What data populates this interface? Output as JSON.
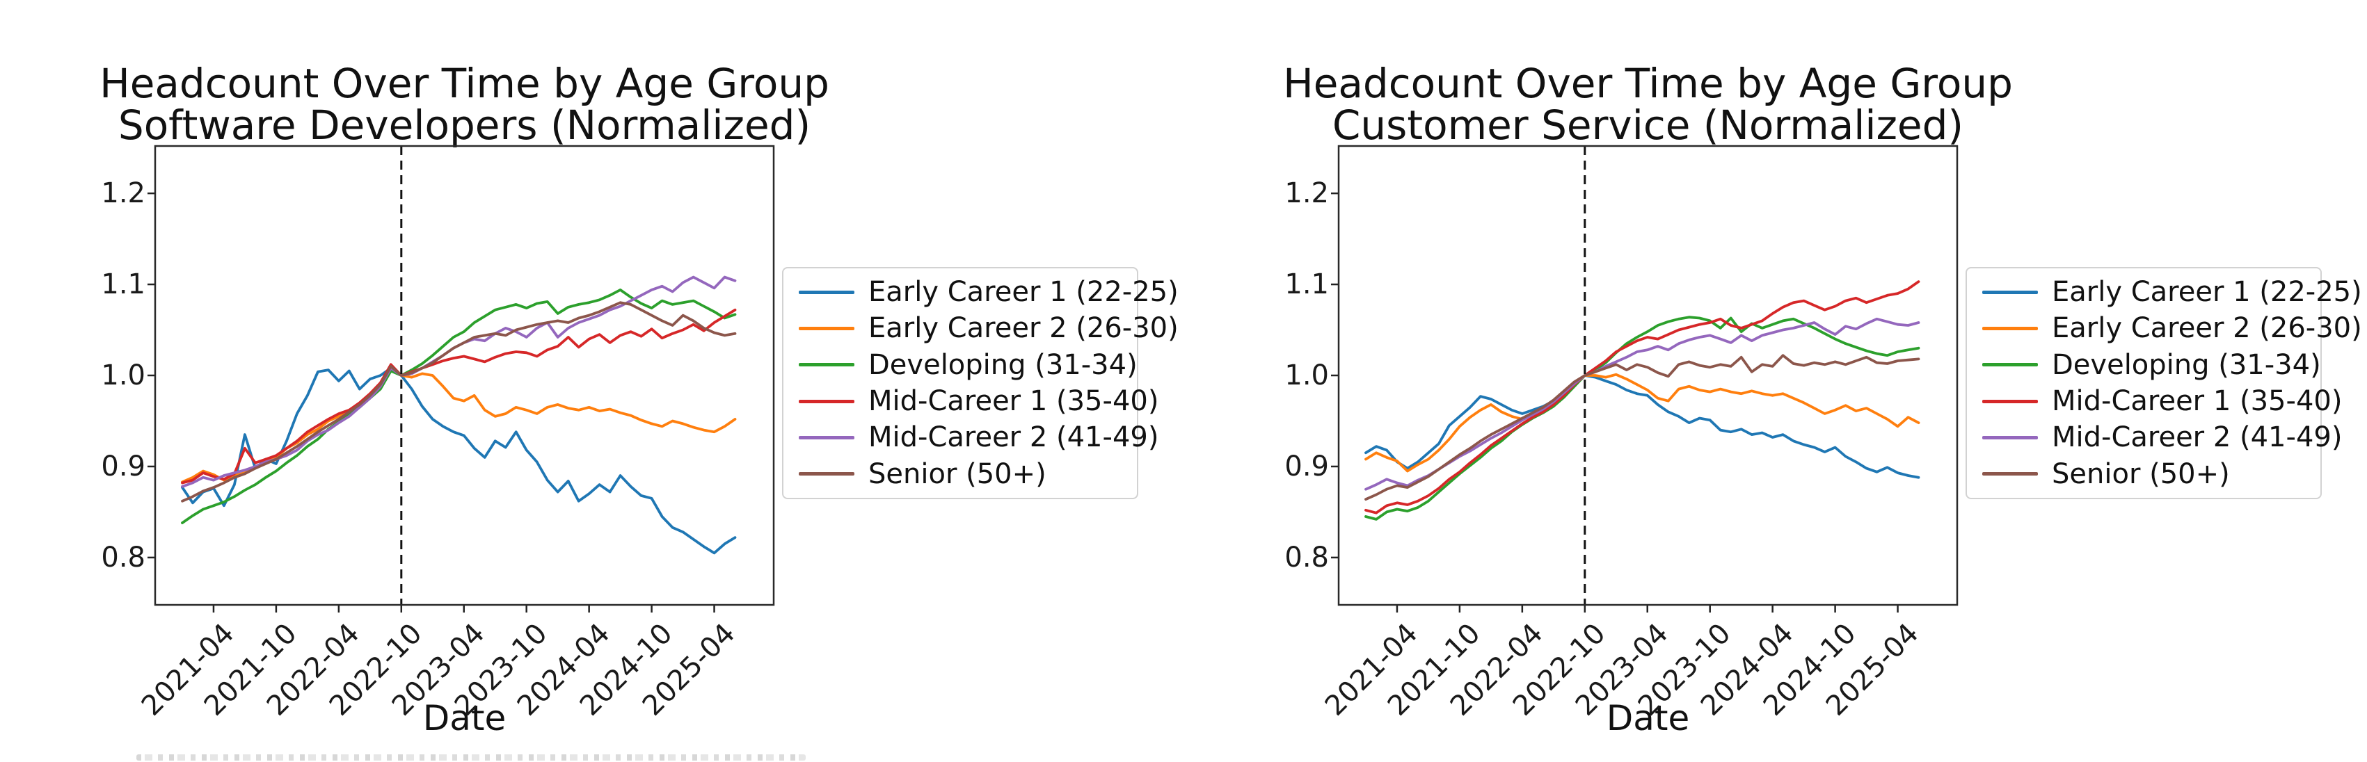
{
  "page": {
    "background": "#ffffff"
  },
  "chart_data": [
    {
      "type": "line",
      "title": "Headcount Over Time by Age Group",
      "subtitle": "Software Developers (Normalized)",
      "xlabel": "Date",
      "ylabel": "",
      "grid": false,
      "legend_position": "center-right-outside",
      "ylim": [
        0.748,
        1.252
      ],
      "y_ticks": [
        1.2,
        1.1,
        1.0,
        0.9,
        0.8
      ],
      "y_tick_labels": [
        "1.2",
        "1.1",
        "1.0",
        "0.9",
        "0.8"
      ],
      "x_unit": "month",
      "x_start": "2021-01",
      "xlim_month_index": [
        -2.6,
        56.7
      ],
      "x_tick_indices": [
        3,
        9,
        15,
        21,
        27,
        33,
        39,
        45,
        51
      ],
      "x_tick_labels": [
        "2021-04",
        "2021-10",
        "2022-04",
        "2022-10",
        "2023-04",
        "2023-10",
        "2024-04",
        "2024-10",
        "2025-04"
      ],
      "event_line_month_index": 21,
      "event_line_date": "2022-10",
      "series": [
        {
          "name": "Early Career 1 (22-25)",
          "color": "#1f77b4",
          "values": [
            0.877,
            0.86,
            0.872,
            0.876,
            0.857,
            0.88,
            0.935,
            0.898,
            0.908,
            0.903,
            0.928,
            0.958,
            0.978,
            1.004,
            1.006,
            0.994,
            1.005,
            0.985,
            0.996,
            1.0,
            1.008,
            1.0,
            0.985,
            0.966,
            0.952,
            0.944,
            0.938,
            0.934,
            0.92,
            0.91,
            0.928,
            0.921,
            0.938,
            0.918,
            0.905,
            0.885,
            0.872,
            0.884,
            0.862,
            0.87,
            0.88,
            0.872,
            0.89,
            0.878,
            0.868,
            0.865,
            0.845,
            0.833,
            0.828,
            0.82,
            0.812,
            0.805,
            0.815,
            0.822
          ]
        },
        {
          "name": "Early Career 2 (26-30)",
          "color": "#ff7f0e",
          "values": [
            0.883,
            0.888,
            0.895,
            0.891,
            0.885,
            0.89,
            0.893,
            0.9,
            0.905,
            0.91,
            0.92,
            0.926,
            0.935,
            0.941,
            0.95,
            0.955,
            0.96,
            0.968,
            0.976,
            0.988,
            1.01,
            1.0,
            0.998,
            1.002,
            1.0,
            0.988,
            0.975,
            0.972,
            0.978,
            0.962,
            0.955,
            0.958,
            0.965,
            0.962,
            0.958,
            0.965,
            0.968,
            0.964,
            0.962,
            0.965,
            0.961,
            0.963,
            0.959,
            0.956,
            0.951,
            0.947,
            0.944,
            0.95,
            0.947,
            0.943,
            0.94,
            0.938,
            0.944,
            0.952
          ]
        },
        {
          "name": "Developing (31-34)",
          "color": "#2ca02c",
          "values": [
            0.838,
            0.846,
            0.853,
            0.857,
            0.861,
            0.867,
            0.874,
            0.88,
            0.888,
            0.895,
            0.904,
            0.912,
            0.922,
            0.93,
            0.941,
            0.949,
            0.957,
            0.965,
            0.975,
            0.985,
            1.005,
            1.0,
            1.006,
            1.013,
            1.022,
            1.032,
            1.042,
            1.048,
            1.058,
            1.065,
            1.072,
            1.075,
            1.078,
            1.074,
            1.079,
            1.081,
            1.068,
            1.075,
            1.078,
            1.08,
            1.083,
            1.088,
            1.094,
            1.086,
            1.079,
            1.074,
            1.082,
            1.078,
            1.08,
            1.082,
            1.076,
            1.07,
            1.063,
            1.067
          ]
        },
        {
          "name": "Mid-Career 1 (35-40)",
          "color": "#d62728",
          "values": [
            0.882,
            0.885,
            0.893,
            0.889,
            0.886,
            0.892,
            0.92,
            0.904,
            0.908,
            0.912,
            0.92,
            0.928,
            0.938,
            0.945,
            0.952,
            0.958,
            0.962,
            0.97,
            0.98,
            0.992,
            1.012,
            1.0,
            1.004,
            1.008,
            1.012,
            1.016,
            1.019,
            1.021,
            1.018,
            1.015,
            1.02,
            1.024,
            1.026,
            1.025,
            1.021,
            1.028,
            1.032,
            1.042,
            1.031,
            1.04,
            1.045,
            1.036,
            1.044,
            1.048,
            1.043,
            1.051,
            1.041,
            1.046,
            1.05,
            1.056,
            1.049,
            1.058,
            1.065,
            1.072
          ]
        },
        {
          "name": "Mid-Career 2 (41-49)",
          "color": "#9467bd",
          "values": [
            0.878,
            0.882,
            0.888,
            0.885,
            0.89,
            0.893,
            0.896,
            0.9,
            0.905,
            0.908,
            0.912,
            0.918,
            0.928,
            0.935,
            0.94,
            0.948,
            0.955,
            0.965,
            0.975,
            0.988,
            1.008,
            1.0,
            1.002,
            1.008,
            1.015,
            1.022,
            1.03,
            1.036,
            1.04,
            1.038,
            1.046,
            1.052,
            1.048,
            1.042,
            1.052,
            1.058,
            1.042,
            1.052,
            1.058,
            1.062,
            1.066,
            1.072,
            1.076,
            1.082,
            1.088,
            1.094,
            1.098,
            1.092,
            1.102,
            1.108,
            1.102,
            1.096,
            1.108,
            1.104
          ]
        },
        {
          "name": "Senior (50+)",
          "color": "#8c564b",
          "values": [
            0.862,
            0.867,
            0.873,
            0.877,
            0.882,
            0.888,
            0.892,
            0.898,
            0.903,
            0.908,
            0.915,
            0.922,
            0.93,
            0.938,
            0.945,
            0.952,
            0.96,
            0.968,
            0.978,
            0.99,
            1.01,
            1.0,
            1.003,
            1.008,
            1.014,
            1.022,
            1.03,
            1.036,
            1.042,
            1.044,
            1.046,
            1.044,
            1.05,
            1.053,
            1.056,
            1.058,
            1.06,
            1.058,
            1.063,
            1.066,
            1.07,
            1.075,
            1.08,
            1.078,
            1.072,
            1.066,
            1.06,
            1.055,
            1.066,
            1.06,
            1.052,
            1.047,
            1.044,
            1.046
          ]
        }
      ]
    },
    {
      "type": "line",
      "title": "Headcount Over Time by Age Group",
      "subtitle": "Customer Service (Normalized)",
      "xlabel": "Date",
      "ylabel": "",
      "grid": false,
      "legend_position": "center-right-outside",
      "ylim": [
        0.748,
        1.252
      ],
      "y_ticks": [
        1.2,
        1.1,
        1.0,
        0.9,
        0.8
      ],
      "y_tick_labels": [
        "1.2",
        "1.1",
        "1.0",
        "0.9",
        "0.8"
      ],
      "x_unit": "month",
      "x_start": "2021-01",
      "xlim_month_index": [
        -2.6,
        56.7
      ],
      "x_tick_indices": [
        3,
        9,
        15,
        21,
        27,
        33,
        39,
        45,
        51
      ],
      "x_tick_labels": [
        "2021-04",
        "2021-10",
        "2022-04",
        "2022-10",
        "2023-04",
        "2023-10",
        "2024-04",
        "2024-10",
        "2025-04"
      ],
      "event_line_month_index": 21,
      "event_line_date": "2022-10",
      "series": [
        {
          "name": "Early Career 1 (22-25)",
          "color": "#1f77b4",
          "values": [
            0.915,
            0.922,
            0.918,
            0.905,
            0.898,
            0.905,
            0.915,
            0.925,
            0.945,
            0.955,
            0.965,
            0.977,
            0.974,
            0.968,
            0.962,
            0.958,
            0.962,
            0.966,
            0.972,
            0.98,
            0.99,
            1.0,
            0.998,
            0.994,
            0.99,
            0.984,
            0.98,
            0.978,
            0.968,
            0.96,
            0.955,
            0.948,
            0.953,
            0.951,
            0.94,
            0.938,
            0.941,
            0.935,
            0.937,
            0.932,
            0.935,
            0.928,
            0.924,
            0.921,
            0.916,
            0.921,
            0.911,
            0.905,
            0.898,
            0.894,
            0.899,
            0.893,
            0.89,
            0.888
          ]
        },
        {
          "name": "Early Career 2 (26-30)",
          "color": "#ff7f0e",
          "values": [
            0.908,
            0.915,
            0.91,
            0.906,
            0.895,
            0.902,
            0.908,
            0.918,
            0.93,
            0.944,
            0.954,
            0.962,
            0.968,
            0.96,
            0.955,
            0.952,
            0.958,
            0.963,
            0.97,
            0.98,
            0.99,
            1.0,
            1.0,
            0.998,
            1.001,
            0.996,
            0.99,
            0.984,
            0.975,
            0.972,
            0.985,
            0.988,
            0.984,
            0.982,
            0.985,
            0.982,
            0.98,
            0.983,
            0.98,
            0.978,
            0.98,
            0.975,
            0.97,
            0.964,
            0.958,
            0.962,
            0.967,
            0.961,
            0.964,
            0.958,
            0.952,
            0.944,
            0.954,
            0.948
          ]
        },
        {
          "name": "Developing (31-34)",
          "color": "#2ca02c",
          "values": [
            0.845,
            0.842,
            0.85,
            0.853,
            0.851,
            0.855,
            0.862,
            0.872,
            0.882,
            0.892,
            0.901,
            0.91,
            0.92,
            0.928,
            0.938,
            0.946,
            0.953,
            0.959,
            0.966,
            0.976,
            0.988,
            1.0,
            1.006,
            1.014,
            1.025,
            1.035,
            1.042,
            1.048,
            1.055,
            1.059,
            1.062,
            1.064,
            1.063,
            1.06,
            1.052,
            1.063,
            1.048,
            1.057,
            1.052,
            1.056,
            1.06,
            1.062,
            1.057,
            1.052,
            1.046,
            1.04,
            1.035,
            1.031,
            1.027,
            1.024,
            1.022,
            1.026,
            1.028,
            1.03
          ]
        },
        {
          "name": "Mid-Career 1 (35-40)",
          "color": "#d62728",
          "values": [
            0.852,
            0.849,
            0.857,
            0.86,
            0.858,
            0.862,
            0.868,
            0.876,
            0.886,
            0.894,
            0.904,
            0.913,
            0.923,
            0.931,
            0.939,
            0.947,
            0.954,
            0.96,
            0.968,
            0.978,
            0.99,
            1.0,
            1.008,
            1.016,
            1.026,
            1.032,
            1.038,
            1.042,
            1.04,
            1.045,
            1.05,
            1.053,
            1.056,
            1.058,
            1.062,
            1.055,
            1.052,
            1.056,
            1.06,
            1.068,
            1.075,
            1.08,
            1.082,
            1.077,
            1.072,
            1.076,
            1.082,
            1.085,
            1.08,
            1.084,
            1.088,
            1.09,
            1.095,
            1.103
          ]
        },
        {
          "name": "Mid-Career 2 (41-49)",
          "color": "#9467bd",
          "values": [
            0.875,
            0.88,
            0.886,
            0.882,
            0.879,
            0.885,
            0.89,
            0.897,
            0.904,
            0.911,
            0.917,
            0.924,
            0.931,
            0.937,
            0.944,
            0.951,
            0.957,
            0.963,
            0.971,
            0.981,
            0.991,
            1.0,
            1.004,
            1.01,
            1.015,
            1.02,
            1.026,
            1.028,
            1.032,
            1.028,
            1.035,
            1.039,
            1.042,
            1.044,
            1.04,
            1.036,
            1.044,
            1.038,
            1.044,
            1.047,
            1.05,
            1.052,
            1.055,
            1.058,
            1.051,
            1.045,
            1.054,
            1.051,
            1.057,
            1.062,
            1.059,
            1.056,
            1.055,
            1.058
          ]
        },
        {
          "name": "Senior (50+)",
          "color": "#8c564b",
          "values": [
            0.864,
            0.869,
            0.875,
            0.879,
            0.877,
            0.883,
            0.889,
            0.897,
            0.905,
            0.913,
            0.92,
            0.928,
            0.935,
            0.941,
            0.947,
            0.953,
            0.959,
            0.965,
            0.973,
            0.983,
            0.993,
            1.0,
            1.004,
            1.008,
            1.012,
            1.006,
            1.012,
            1.009,
            1.003,
            0.999,
            1.012,
            1.015,
            1.011,
            1.009,
            1.012,
            1.01,
            1.02,
            1.004,
            1.012,
            1.01,
            1.022,
            1.013,
            1.011,
            1.014,
            1.012,
            1.015,
            1.012,
            1.016,
            1.02,
            1.014,
            1.013,
            1.016,
            1.017,
            1.018
          ]
        }
      ]
    }
  ]
}
